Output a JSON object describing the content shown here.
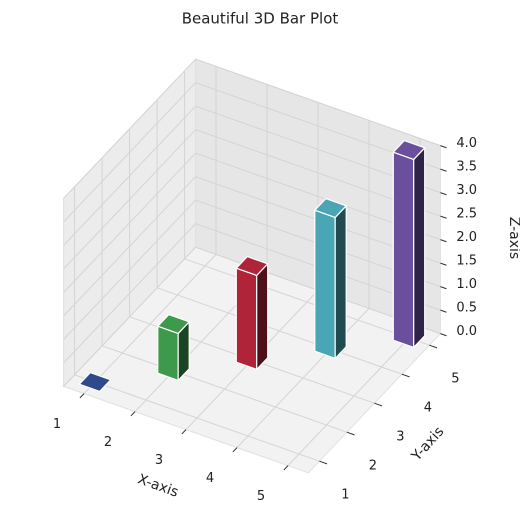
{
  "chart_data": {
    "type": "bar3d",
    "title": "Beautiful 3D Bar Plot",
    "x_label": "X-axis",
    "y_label": "Y-axis",
    "z_label": "Z-axis",
    "x": [
      1,
      2,
      3,
      4,
      5
    ],
    "y": [
      1,
      2,
      3,
      4,
      5
    ],
    "values": [
      0,
      1,
      2,
      3,
      4
    ],
    "colors": [
      "#2e4a8c",
      "#3d9a4c",
      "#b0243a",
      "#4aa6b4",
      "#6a4f9c"
    ],
    "xlim": [
      0.6,
      5.4
    ],
    "ylim": [
      0.6,
      5.4
    ],
    "zlim": [
      0,
      4
    ],
    "xticks": [
      1,
      2,
      3,
      4,
      5
    ],
    "yticks": [
      1,
      2,
      3,
      4,
      5
    ],
    "zticks": [
      {
        "value": 0,
        "label": "0.0"
      },
      0.5,
      {
        "value": 1,
        "label": "1.0"
      },
      1.5,
      {
        "value": 2,
        "label": "2.0"
      },
      2.5,
      {
        "value": 3,
        "label": "3.0"
      },
      3.5,
      {
        "value": 4,
        "label": "4.0"
      }
    ],
    "grid": true
  }
}
